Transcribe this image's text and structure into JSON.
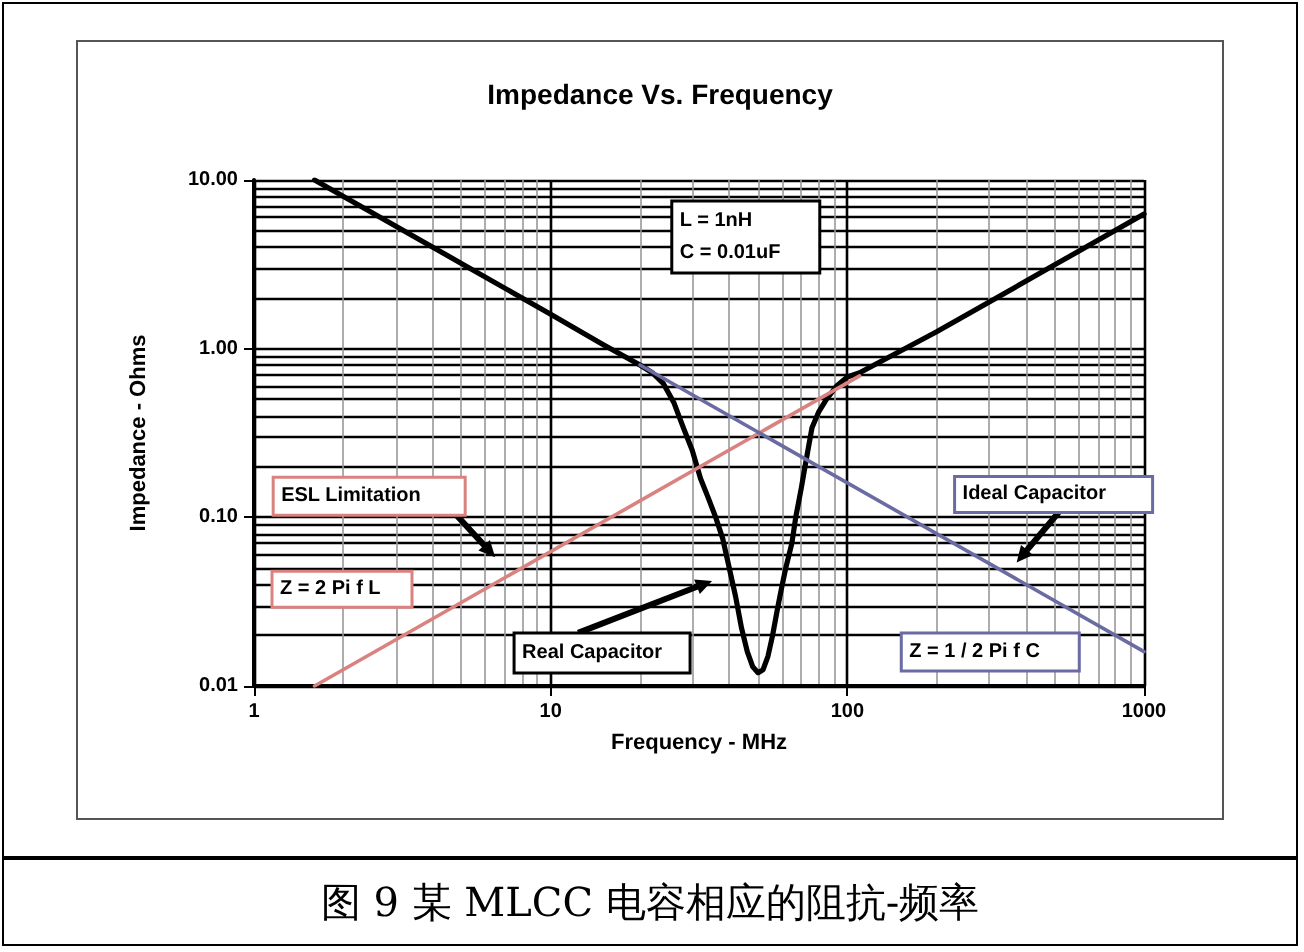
{
  "chart_data": {
    "type": "line",
    "title": "Impedance Vs. Frequency",
    "xlabel": "Frequency - MHz",
    "ylabel": "Impedance - Ohms",
    "log": "xy",
    "grid": true,
    "marker": "none",
    "line_style": "solid",
    "xlim": [
      1,
      1000
    ],
    "xticks": [
      1,
      10,
      100,
      1000
    ],
    "ylim": [
      0.01,
      10
    ],
    "yticks": [
      {
        "value": 0.01,
        "label": "0.01"
      },
      {
        "value": 0.1,
        "label": "0.10"
      },
      {
        "value": 1,
        "label": "1.00"
      },
      {
        "value": 10,
        "label": "10.00"
      }
    ],
    "series": [
      {
        "color": "#000000",
        "x": [
          1.6,
          5,
          10,
          15,
          20,
          22,
          24,
          26,
          28,
          30,
          32,
          34,
          36,
          38,
          40,
          42,
          44,
          46,
          48,
          50,
          52,
          54,
          56,
          58,
          60,
          62,
          65,
          67,
          70,
          72,
          76,
          80,
          85,
          92,
          100,
          110,
          200,
          500,
          1000
        ],
        "values": [
          10,
          3.2,
          1.6,
          1.06,
          0.8,
          0.72,
          0.62,
          0.48,
          0.34,
          0.25,
          0.17,
          0.13,
          0.1,
          0.075,
          0.05,
          0.034,
          0.022,
          0.016,
          0.013,
          0.012,
          0.0125,
          0.015,
          0.02,
          0.028,
          0.038,
          0.05,
          0.07,
          0.1,
          0.15,
          0.2,
          0.34,
          0.42,
          0.5,
          0.6,
          0.68,
          0.72,
          1.26,
          3.14,
          6.28
        ]
      },
      {
        "color": "#d9827f",
        "x": [
          1.6,
          110
        ],
        "values": [
          0.01,
          0.69
        ]
      },
      {
        "color": "#6b6ba3",
        "x": [
          20,
          1000
        ],
        "values": [
          0.8,
          0.016
        ]
      }
    ],
    "annotations": [
      "ESL Limitation",
      "Z = 2 Pi f L",
      "Real Capacitor",
      "Ideal Capacitor",
      "Z = 1 / 2 Pi f C",
      "L = 1nH\nC = 0.01uF",
      "图 9 某 MLCC 电容相应的阻抗-频率"
    ]
  }
}
